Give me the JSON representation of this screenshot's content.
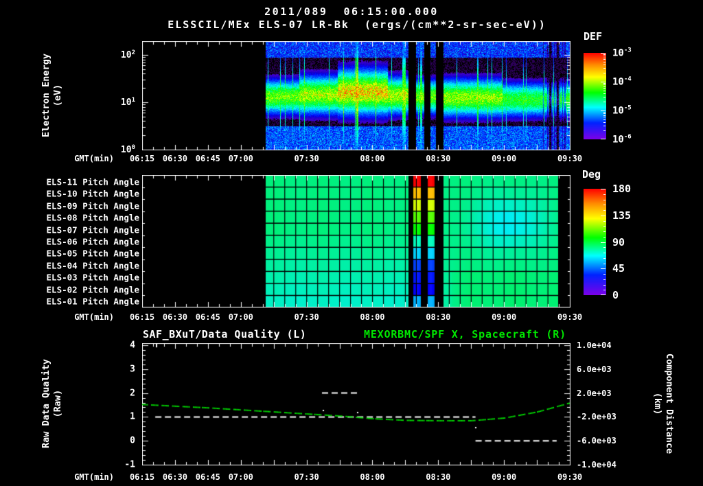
{
  "header": {
    "title_line1": "2011/089  06:15:00.000",
    "title_line2": "ELSSCIL/MEx ELS-07 LR-Bk  (ergs/(cm**2-sr-sec-eV))"
  },
  "time_axis": {
    "label": "GMT(min)",
    "tick_labels": [
      "06:15",
      "06:30",
      "06:45",
      "07:00",
      "07:30",
      "08:00",
      "08:30",
      "09:00",
      "09:30"
    ],
    "tick_minutes": [
      375,
      390,
      405,
      420,
      450,
      480,
      510,
      540,
      570
    ],
    "start_minute": 375,
    "end_minute": 570
  },
  "pow_base": "10",
  "panels": {
    "spectrogram": {
      "ylabel_line1": "Electron Energy",
      "ylabel_line2": "(eV)",
      "ytick_exponents": [
        "2",
        "1",
        "0"
      ],
      "colorbar": {
        "title": "DEF",
        "tick_exponents": [
          "-3",
          "-4",
          "-5",
          "-6"
        ]
      }
    },
    "pitch": {
      "row_labels": [
        "ELS-11 Pitch Angle",
        "ELS-10 Pitch Angle",
        "ELS-09 Pitch Angle",
        "ELS-08 Pitch Angle",
        "ELS-07 Pitch Angle",
        "ELS-06 Pitch Angle",
        "ELS-05 Pitch Angle",
        "ELS-04 Pitch Angle",
        "ELS-03 Pitch Angle",
        "ELS-02 Pitch Angle",
        "ELS-01 Pitch Angle"
      ],
      "colorbar": {
        "title": "Deg",
        "tick_labels": [
          "180",
          "135",
          "90",
          "45",
          "0"
        ]
      }
    },
    "quality": {
      "title_left": "SAF_BXuT/Data Quality (L)",
      "title_right": "MEXORBMC/SPF X, Spacecraft (R)",
      "title_right_color": "#00e800",
      "ylabel_left_line1": "Raw Data Quality",
      "ylabel_left_line2": "(Raw)",
      "ytick_left_labels": [
        "4",
        "3",
        "2",
        "1",
        "0",
        "-1"
      ],
      "ylabel_right_line1": "Component Distance",
      "ylabel_right_line2": "(km)",
      "ytick_right_labels": [
        "1.0e+04",
        "6.0e+03",
        "2.0e+03",
        "-2.0e+03",
        "-6.0e+03",
        "-1.0e+04"
      ]
    }
  },
  "colors": {
    "background": "#000000",
    "axis": "#ffffff",
    "quality_series": "#ffffff",
    "spacecraft_series": "#00dd00"
  },
  "chart_data": [
    {
      "type": "heatmap",
      "title": "ELSSCIL/MEx ELS-07 LR-Bk (ergs/(cm**2-sr-sec-eV))",
      "xlabel": "GMT(min)",
      "ylabel": "Electron Energy (eV)",
      "x_range_gmt": [
        "06:15",
        "09:30"
      ],
      "y_scale": "log",
      "y_range_ev": [
        1,
        190
      ],
      "colorbar": {
        "title": "DEF",
        "min": 1e-06,
        "max": 0.001,
        "scale": "log",
        "palette": "rainbow"
      },
      "coverage": {
        "start": "07:11",
        "end": "09:30"
      },
      "data_gaps_gmt": [
        [
          "08:17",
          "08:20"
        ],
        [
          "08:24",
          "08:26"
        ],
        [
          "08:29",
          "08:32"
        ]
      ],
      "features": [
        {
          "desc": "continuous electron flux band",
          "energy_ev": [
            4,
            40
          ],
          "time": [
            "07:11",
            "09:30"
          ],
          "peak_flux": "~1e-4"
        },
        {
          "desc": "enhanced yellow-green flux blob",
          "energy_ev": [
            8,
            80
          ],
          "time": [
            "07:42",
            "08:08"
          ],
          "peak_flux": "~3e-4"
        },
        {
          "desc": "weaker cyan-green band",
          "time": [
            "09:05",
            "09:30"
          ],
          "peak_flux": "~4e-5"
        },
        {
          "desc": "blue-violet background speckle above and below band",
          "flux": "1e-6 to 1e-5"
        }
      ]
    },
    {
      "type": "heatmap",
      "rows": [
        "ELS-11",
        "ELS-10",
        "ELS-09",
        "ELS-08",
        "ELS-07",
        "ELS-06",
        "ELS-05",
        "ELS-04",
        "ELS-03",
        "ELS-02",
        "ELS-01"
      ],
      "value_name": "Pitch Angle",
      "colorbar": {
        "title": "Deg",
        "min": 0,
        "max": 180,
        "ticks": [
          180,
          135,
          90,
          45,
          0
        ],
        "palette": "rainbow"
      },
      "coverage": {
        "start": "07:11",
        "end": "09:24"
      },
      "data_gaps_gmt": [
        [
          "08:17",
          "08:20"
        ],
        [
          "08:24",
          "08:26"
        ],
        [
          "08:29",
          "08:32"
        ]
      ],
      "features": [
        {
          "desc": "pitch angles mostly 85-100 deg (green) on all anodes"
        },
        {
          "desc": "lower anodes slightly cyan ~75-85 deg"
        },
        {
          "desc": "event near 08:21-08:28: top anodes ~175 deg (red/orange) grading down to ~20 deg (blue) on bottom anodes"
        },
        {
          "desc": "soft cyan patch ~60-75 deg on middle anodes around 08:40-09:10"
        }
      ]
    },
    {
      "type": "line",
      "titles": {
        "left": "SAF_BXuT/Data Quality (L)",
        "right": "MEXORBMC/SPF X, Spacecraft (R)"
      },
      "xlabel": "GMT(min)",
      "ylabel_left": "Raw Data Quality (Raw)",
      "ylabel_right": "Component Distance (km)",
      "ylim_left": [
        -1,
        4
      ],
      "ylim_right": [
        -10000,
        10000
      ],
      "series": [
        {
          "name": "SAF_BXuT/Data Quality",
          "axis": "left",
          "color": "#ffffff",
          "style": "dashed",
          "segments": [
            {
              "from": "06:21",
              "to": "08:47",
              "value": 1
            },
            {
              "from": "07:37",
              "to": "07:53",
              "value": 2
            },
            {
              "from": "08:47",
              "to": "09:24",
              "value": 0
            }
          ]
        },
        {
          "name": "MEXORBMC/SPF X Spacecraft",
          "axis": "right",
          "color": "#00dd00",
          "style": "dotted",
          "x_gmt": [
            "06:15",
            "06:30",
            "06:45",
            "07:00",
            "07:15",
            "07:30",
            "07:45",
            "08:00",
            "08:15",
            "08:30",
            "08:45",
            "09:00",
            "09:15",
            "09:30"
          ],
          "y_km": [
            190,
            -90,
            -370,
            -710,
            -1050,
            -1390,
            -1730,
            -2180,
            -2460,
            -2520,
            -2520,
            -2070,
            -1050,
            470
          ]
        }
      ]
    }
  ]
}
